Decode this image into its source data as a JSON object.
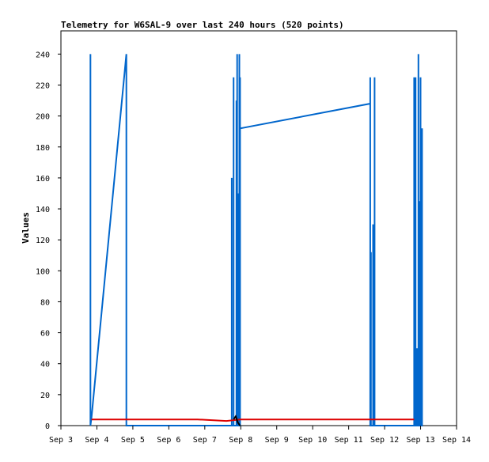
{
  "chart_data": {
    "type": "line",
    "title": "Telemetry for W6SAL-9 over last 240 hours (520 points)",
    "xlabel": "",
    "ylabel": "Values",
    "xlim": [
      "Sep 3",
      "Sep 14"
    ],
    "ylim": [
      0,
      255
    ],
    "x_ticks": [
      "Sep 3",
      "Sep 4",
      "Sep 5",
      "Sep 6",
      "Sep 7",
      "Sep 8",
      "Sep 9",
      "Sep 10",
      "Sep 11",
      "Sep 12",
      "Sep 13",
      "Sep 14"
    ],
    "y_ticks": [
      0,
      20,
      40,
      60,
      80,
      100,
      120,
      140,
      160,
      180,
      200,
      220,
      240
    ],
    "grid": false,
    "legend": "none",
    "series": [
      {
        "color": "#0066cc",
        "points": [
          [
            0.82,
            0
          ],
          [
            0.82,
            240
          ],
          [
            0.82,
            0
          ],
          [
            0.85,
            5
          ],
          [
            1.82,
            240
          ],
          [
            1.82,
            0
          ],
          [
            4.75,
            0
          ],
          [
            4.75,
            160
          ],
          [
            4.75,
            0
          ],
          [
            4.8,
            0
          ],
          [
            4.8,
            225
          ],
          [
            4.8,
            0
          ],
          [
            4.88,
            0
          ],
          [
            4.88,
            210
          ],
          [
            4.88,
            0
          ],
          [
            4.9,
            0
          ],
          [
            4.9,
            240
          ],
          [
            4.9,
            90
          ],
          [
            4.93,
            150
          ],
          [
            4.93,
            0
          ],
          [
            4.96,
            0
          ],
          [
            4.96,
            240
          ],
          [
            4.96,
            0
          ],
          [
            4.98,
            0
          ],
          [
            4.98,
            225
          ],
          [
            4.98,
            192
          ],
          [
            8.6,
            208
          ],
          [
            8.6,
            225
          ],
          [
            8.6,
            0
          ],
          [
            8.62,
            0
          ],
          [
            8.62,
            112
          ],
          [
            8.62,
            0
          ],
          [
            8.68,
            0
          ],
          [
            8.68,
            130
          ],
          [
            8.68,
            0
          ],
          [
            8.72,
            0
          ],
          [
            8.72,
            160
          ],
          [
            8.72,
            225
          ],
          [
            8.72,
            0
          ],
          [
            9.82,
            0
          ],
          [
            9.82,
            225
          ],
          [
            9.82,
            0
          ],
          [
            9.86,
            0
          ],
          [
            9.86,
            225
          ],
          [
            9.86,
            0
          ],
          [
            9.9,
            0
          ],
          [
            9.9,
            50
          ],
          [
            9.9,
            0
          ],
          [
            9.94,
            0
          ],
          [
            9.94,
            240
          ],
          [
            9.94,
            0
          ],
          [
            9.97,
            0
          ],
          [
            9.97,
            145
          ],
          [
            9.97,
            0
          ],
          [
            10.0,
            0
          ],
          [
            10.0,
            225
          ],
          [
            10.0,
            0
          ],
          [
            10.04,
            0
          ],
          [
            10.04,
            192
          ],
          [
            10.04,
            0
          ]
        ]
      },
      {
        "color": "#dd0000",
        "points": [
          [
            0.85,
            4
          ],
          [
            3.8,
            4
          ],
          [
            4.6,
            3
          ],
          [
            4.98,
            4
          ],
          [
            9.82,
            4
          ]
        ]
      },
      {
        "color": "#000000",
        "points": [
          [
            4.8,
            4
          ],
          [
            4.86,
            6
          ],
          [
            4.92,
            2
          ],
          [
            4.98,
            0
          ]
        ]
      }
    ]
  }
}
